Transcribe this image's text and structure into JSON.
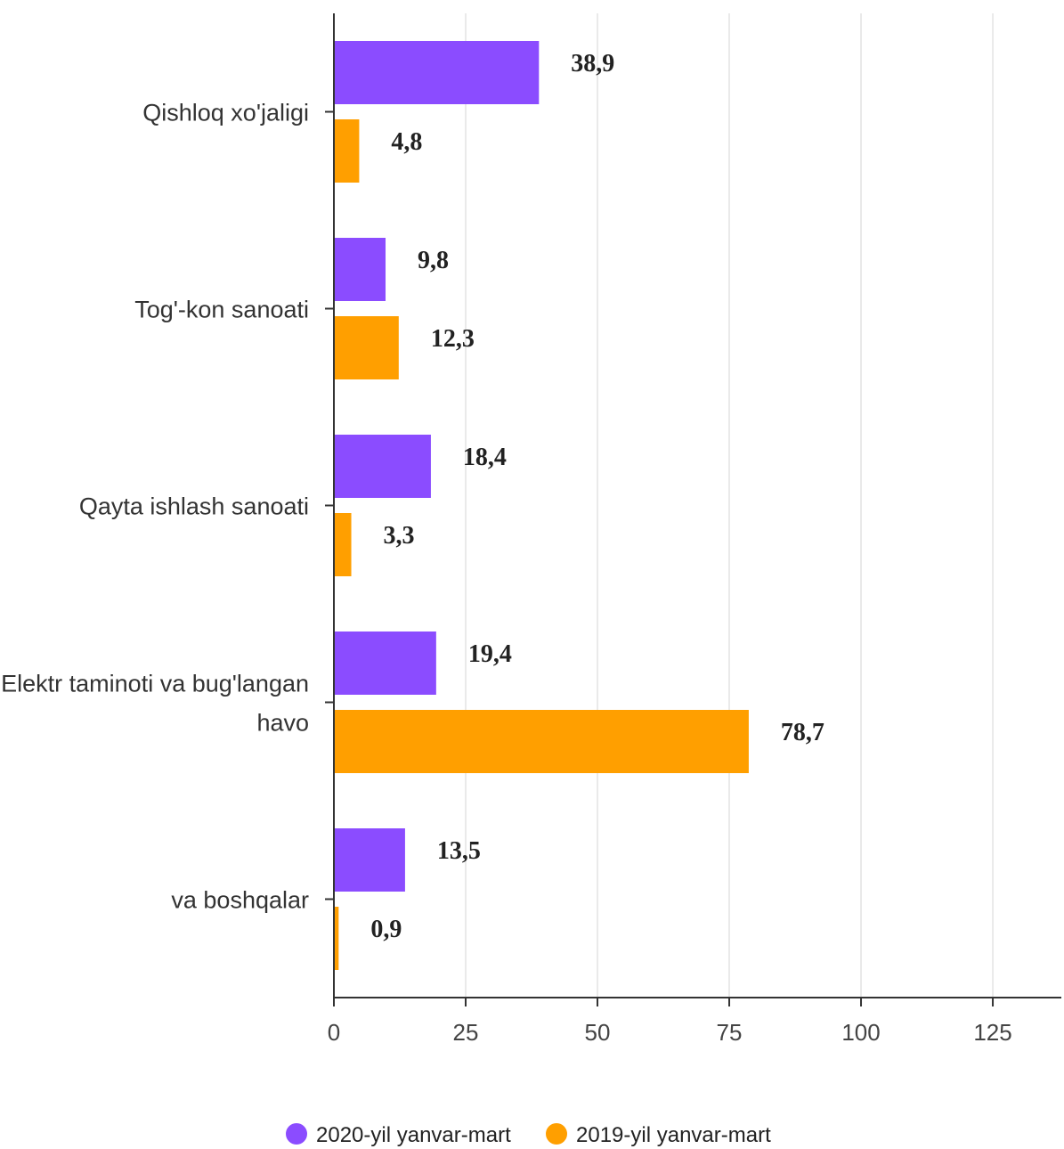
{
  "chart_data": {
    "type": "bar",
    "orientation": "horizontal",
    "categories": [
      [
        "Qishloq xo'jaligi"
      ],
      [
        "Tog'-kon sanoati"
      ],
      [
        "Qayta ishlash sanoati"
      ],
      [
        "Elektr taminoti va bug'langan",
        "havo"
      ],
      [
        "va boshqalar"
      ]
    ],
    "series": [
      {
        "name": "2020-yil yanvar-mart",
        "color": "#8b4cff",
        "values": [
          38.9,
          9.8,
          18.4,
          19.4,
          13.5
        ],
        "labels": [
          "38,9",
          "9,8",
          "18,4",
          "19,4",
          "13,5"
        ]
      },
      {
        "name": "2019-yil yanvar-mart",
        "color": "#ff9f00",
        "values": [
          4.8,
          12.3,
          3.3,
          78.7,
          0.9
        ],
        "labels": [
          "4,8",
          "12,3",
          "3,3",
          "78,7",
          "0,9"
        ]
      }
    ],
    "xlim": [
      0,
      138
    ],
    "xticks": [
      0,
      25,
      50,
      75,
      100,
      125
    ],
    "grid": true,
    "legend": "bottom"
  }
}
